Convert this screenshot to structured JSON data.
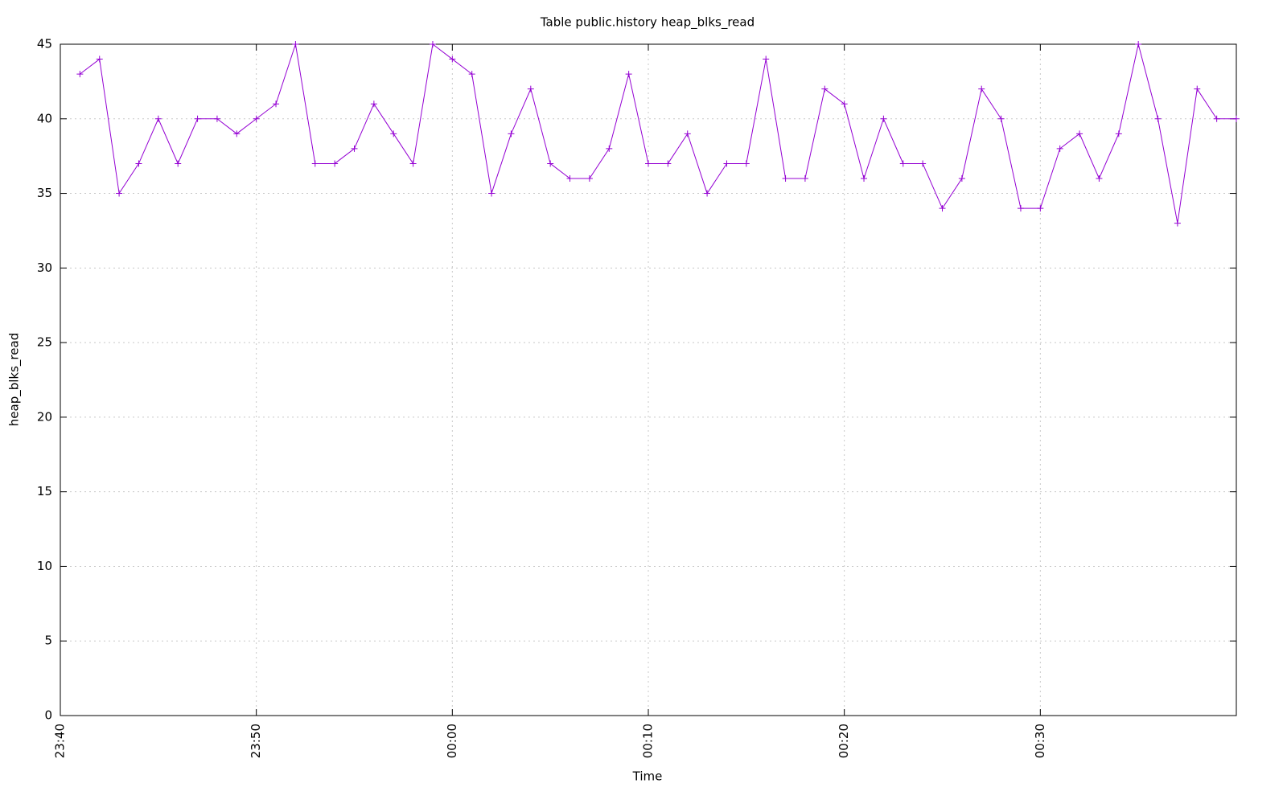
{
  "chart_data": {
    "type": "line",
    "title": "Table public.history heap_blks_read",
    "x_label": "Time",
    "y_label": "heap_blks_read",
    "color": "#9400d3",
    "grid": true,
    "marker": "plus",
    "x": [
      "23:41",
      "23:42",
      "23:43",
      "23:44",
      "23:45",
      "23:46",
      "23:47",
      "23:48",
      "23:49",
      "23:50",
      "23:51",
      "23:52",
      "23:53",
      "23:54",
      "23:55",
      "23:56",
      "23:57",
      "23:58",
      "23:59",
      "00:00",
      "00:01",
      "00:02",
      "00:03",
      "00:04",
      "00:05",
      "00:06",
      "00:07",
      "00:08",
      "00:09",
      "00:10",
      "00:11",
      "00:12",
      "00:13",
      "00:14",
      "00:15",
      "00:16",
      "00:17",
      "00:18",
      "00:19",
      "00:20",
      "00:21",
      "00:22",
      "00:23",
      "00:24",
      "00:25",
      "00:26",
      "00:27",
      "00:28",
      "00:29",
      "00:30",
      "00:31",
      "00:32",
      "00:33",
      "00:34",
      "00:35",
      "00:36",
      "00:37",
      "00:38",
      "00:39",
      "00:40"
    ],
    "values": [
      43,
      44,
      35,
      37,
      40,
      37,
      40,
      40,
      39,
      40,
      41,
      45,
      37,
      37,
      38,
      41,
      39,
      37,
      45,
      44,
      43,
      35,
      39,
      42,
      37,
      36,
      36,
      38,
      43,
      37,
      37,
      39,
      35,
      37,
      37,
      44,
      36,
      36,
      42,
      41,
      36,
      40,
      37,
      37,
      34,
      36,
      42,
      40,
      34,
      34,
      38,
      39,
      36,
      39,
      45,
      40,
      33,
      42,
      40,
      40
    ],
    "xlim": [
      "23:40",
      "00:40"
    ],
    "xticks": [
      "23:40",
      "23:50",
      "00:00",
      "00:10",
      "00:20",
      "00:30"
    ],
    "ylim": [
      0,
      45
    ],
    "yticks": [
      0,
      5,
      10,
      15,
      20,
      25,
      30,
      35,
      40,
      45
    ]
  }
}
